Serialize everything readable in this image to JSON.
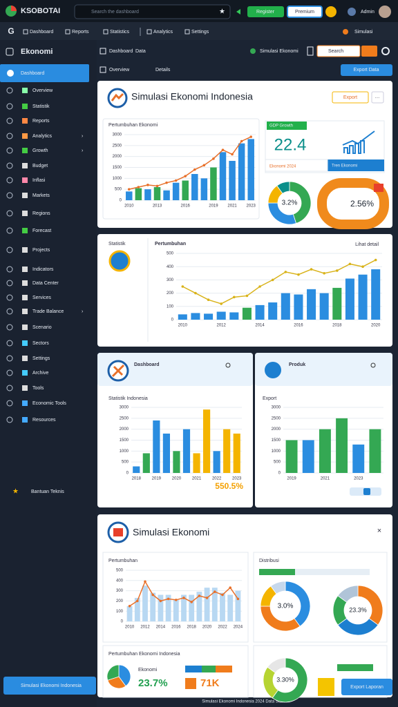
{
  "header": {
    "logo": "KSOBOTAI",
    "search": "Search the dashboard",
    "buttons": [
      "Register",
      "Premium"
    ],
    "user": "Admin"
  },
  "nav": {
    "home": "G",
    "items": [
      "Dashboard",
      "Reports",
      "Statistics",
      "Analytics",
      "Settings"
    ],
    "right": "Simulasi"
  },
  "sidebar": {
    "title": "Ekonomi",
    "active": "Dashboard",
    "items": [
      "Overview",
      "Statistik",
      "Reports",
      "Analytics",
      "Growth",
      "Budget",
      "Inflasi",
      "Markets",
      "Regions",
      "Forecast",
      "Projects",
      "Indicators",
      "Data Center",
      "Services",
      "Trade Balance",
      "Scenario",
      "Sectors",
      "Settings",
      "Archive",
      "Tools",
      "Economic Tools",
      "Resources"
    ],
    "help": "Bantuan Teknis",
    "footer": "Simulasi Ekonomi Indonesia"
  },
  "toolbar": {
    "home": "Dashboard",
    "tab": "Data",
    "filter": "Simulasi Ekonomi",
    "view": "Overview",
    "details": "Details",
    "export": "Export Data",
    "search": "Search"
  },
  "panels": [
    {
      "title": "Simulasi Ekonomi Indonesia",
      "action": "Export",
      "chart_title": "Pertumbuhan Ekonomi",
      "chart": {
        "type": "bar",
        "ylim": [
          0,
          3000
        ],
        "yticks": [
          0,
          500,
          1000,
          1500,
          2000,
          2500,
          3000
        ],
        "categories": [
          "2010",
          null,
          null,
          "2013",
          null,
          null,
          "2016",
          null,
          null,
          "2019",
          null,
          "2021",
          null,
          "2023"
        ],
        "values": [
          400,
          550,
          500,
          600,
          450,
          800,
          900,
          1200,
          1000,
          1500,
          2200,
          1800,
          2600,
          2800
        ],
        "colors": [
          "#2b8de0",
          "#34a853",
          "#2b8de0",
          "#34a853",
          "#2b8de0",
          "#2b8de0",
          "#34a853",
          "#2b8de0",
          "#2b8de0",
          "#34a853",
          "#2b8de0",
          "#2b8de0",
          "#2b8de0",
          "#2b8de0"
        ],
        "line": {
          "color": "#e8702a",
          "values": [
            500,
            600,
            700,
            650,
            800,
            900,
            1100,
            1400,
            1600,
            1900,
            2300,
            2100,
            2700,
            2900
          ]
        }
      },
      "kpi": {
        "label": "GDP Growth",
        "value": "22.4",
        "caption": "Ekonomi 2024",
        "trend": "Tren Ekonomi"
      },
      "donut": {
        "type": "pie",
        "values": [
          45,
          30,
          15,
          10
        ],
        "colors": [
          "#34a853",
          "#2b8de0",
          "#f4b400",
          "#0b8f8a"
        ],
        "label": "3.2%"
      },
      "gauge_label": "2.56%"
    },
    {
      "label": "Statistik",
      "chart_title": "Pertumbuhan",
      "more": "Lihat detail",
      "chart": {
        "type": "bar",
        "ylim": [
          0,
          500
        ],
        "yticks": [
          0,
          100,
          200,
          300,
          400,
          500
        ],
        "categories": [
          "2010",
          null,
          null,
          "2012",
          null,
          null,
          "2014",
          null,
          null,
          "2016",
          null,
          null,
          "2018",
          null,
          null,
          "2020"
        ],
        "values": [
          40,
          50,
          45,
          60,
          55,
          90,
          110,
          130,
          200,
          190,
          230,
          200,
          240,
          310,
          340,
          380
        ],
        "colors": [
          "#2b8de0",
          "#2b8de0",
          "#2b8de0",
          "#2b8de0",
          "#2b8de0",
          "#34a853",
          "#2b8de0",
          "#2b8de0",
          "#2b8de0",
          "#2b8de0",
          "#2b8de0",
          "#2b8de0",
          "#34a853",
          "#2b8de0",
          "#2b8de0",
          "#2b8de0"
        ],
        "line": {
          "color": "#d9b31a",
          "values": [
            250,
            200,
            150,
            120,
            170,
            180,
            250,
            300,
            360,
            340,
            380,
            350,
            370,
            420,
            400,
            450
          ]
        }
      }
    },
    {
      "title": "Dashboard",
      "chart_title": "Statistik Indonesia",
      "caption": "550.5%",
      "chart": {
        "type": "bar",
        "ylim": [
          0,
          3000
        ],
        "yticks": [
          0,
          500,
          1000,
          1500,
          2000,
          2500,
          3000
        ],
        "categories": [
          "2018",
          null,
          "2019",
          null,
          "2020",
          null,
          "2021",
          null,
          "2022",
          null,
          "2023"
        ],
        "values": [
          300,
          900,
          2400,
          1800,
          1000,
          2000,
          900,
          2900,
          1000,
          2000,
          1800
        ],
        "colors": [
          "#2b8de0",
          "#34a853",
          "#2b8de0",
          "#2b8de0",
          "#34a853",
          "#2b8de0",
          "#f4b400",
          "#f4b400",
          "#2b8de0",
          "#f4b400",
          "#f4b400"
        ]
      }
    },
    {
      "title": "Produk",
      "chart_title": "Export",
      "chart": {
        "type": "bar",
        "ylim": [
          0,
          3000
        ],
        "yticks": [
          0,
          500,
          1000,
          1500,
          2000,
          2500,
          3000
        ],
        "categories": [
          "2019",
          null,
          "2021",
          null,
          "2023",
          null
        ],
        "values": [
          1500,
          1500,
          2000,
          2500,
          1300,
          2000
        ],
        "colors": [
          "#34a853",
          "#2b8de0",
          "#34a853",
          "#34a853",
          "#2b8de0",
          "#34a853"
        ]
      }
    },
    {
      "title": "Simulasi Ekonomi",
      "chart_title": "Pertumbuhan",
      "dist_title": "Distribusi",
      "chart": {
        "type": "bar",
        "ylim": [
          0,
          500
        ],
        "yticks": [
          0,
          100,
          200,
          300,
          400,
          500
        ],
        "categories": [
          "2010",
          null,
          "2012",
          null,
          "2014",
          null,
          "2016",
          null,
          "2018",
          null,
          "2020",
          null,
          "2022",
          null,
          "2024"
        ],
        "values": [
          150,
          230,
          350,
          280,
          260,
          260,
          210,
          260,
          260,
          290,
          330,
          330,
          280,
          260,
          300
        ],
        "colors": [
          "#b8d8f2",
          "#b8d8f2",
          "#b8d8f2",
          "#b8d8f2",
          "#b8d8f2",
          "#b8d8f2",
          "#b8d8f2",
          "#b8d8f2",
          "#b8d8f2",
          "#b8d8f2",
          "#b8d8f2",
          "#b8d8f2",
          "#b8d8f2",
          "#b8d8f2",
          "#b8d8f2"
        ],
        "line": {
          "color": "#e8702a",
          "values": [
            150,
            200,
            390,
            260,
            200,
            220,
            210,
            230,
            190,
            250,
            230,
            290,
            260,
            330,
            220
          ]
        }
      },
      "donuts": [
        {
          "type": "pie",
          "values": [
            40,
            35,
            15,
            10
          ],
          "colors": [
            "#2b8de0",
            "#f07c1c",
            "#f4b400",
            "#c6d8ec"
          ],
          "label": "3.0%"
        },
        {
          "type": "pie",
          "values": [
            35,
            30,
            20,
            15
          ],
          "colors": [
            "#f07c1c",
            "#1d7fd0",
            "#34a853",
            "#b0c4d8"
          ],
          "label": "23.3%"
        },
        {
          "type": "pie",
          "values": [
            60,
            25,
            15
          ],
          "colors": [
            "#34a853",
            "#b6d432",
            "#e6e6e6"
          ],
          "label": "3.30%"
        }
      ],
      "summary": {
        "title": "Pertumbuhan Ekonomi Indonesia",
        "label": "Ekonomi",
        "value": "23.7%",
        "value2": "71K"
      },
      "mini_pie": {
        "type": "pie",
        "values": [
          40,
          30,
          30
        ],
        "colors": [
          "#2b8de0",
          "#f07c1c",
          "#34a853"
        ]
      },
      "button": "Export Laporan"
    }
  ],
  "footer": "Simulasi Ekonomi Indonesia 2024 Data Statistik"
}
